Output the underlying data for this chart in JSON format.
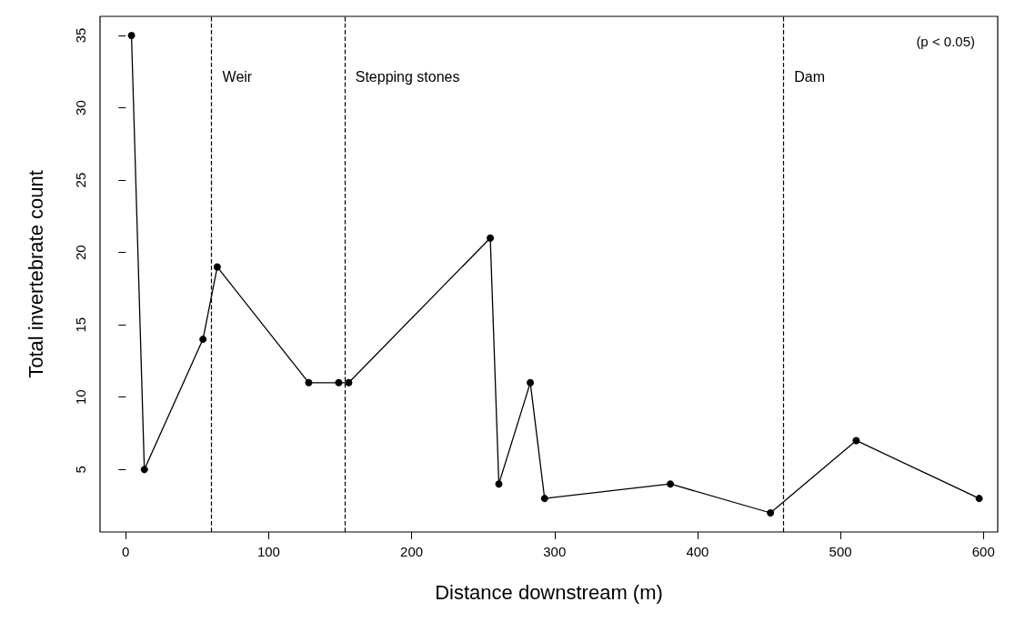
{
  "chart_data": {
    "type": "line",
    "xlabel": "Distance downstream (m)",
    "ylabel": "Total invertebrate count",
    "x": [
      4,
      13,
      54,
      64,
      128,
      149,
      156,
      255,
      261,
      283,
      293,
      381,
      451,
      511,
      597
    ],
    "values": [
      35,
      5,
      14,
      19,
      11,
      11,
      11,
      21,
      4,
      11,
      3,
      4,
      2,
      7,
      3
    ],
    "color": "#000000",
    "marker": "circle",
    "line_style": "solid",
    "grid": false,
    "xlim": [
      -18,
      610
    ],
    "xticks": [
      0,
      100,
      200,
      300,
      400,
      500,
      600
    ],
    "ylim": [
      0.68,
      36.32
    ],
    "yticks": [
      5,
      10,
      15,
      20,
      25,
      30,
      35
    ],
    "ref_lines": [
      {
        "axis": "x",
        "value": 60,
        "label": "Weir",
        "line_style": "dashed",
        "color": "#000000"
      },
      {
        "axis": "x",
        "value": 153,
        "label": "Stepping stones",
        "line_style": "dashed",
        "color": "#000000"
      },
      {
        "axis": "x",
        "value": 460,
        "label": "Dam",
        "line_style": "dashed",
        "color": "#000000"
      }
    ],
    "annotations": [
      "(p < 0.05)"
    ]
  }
}
